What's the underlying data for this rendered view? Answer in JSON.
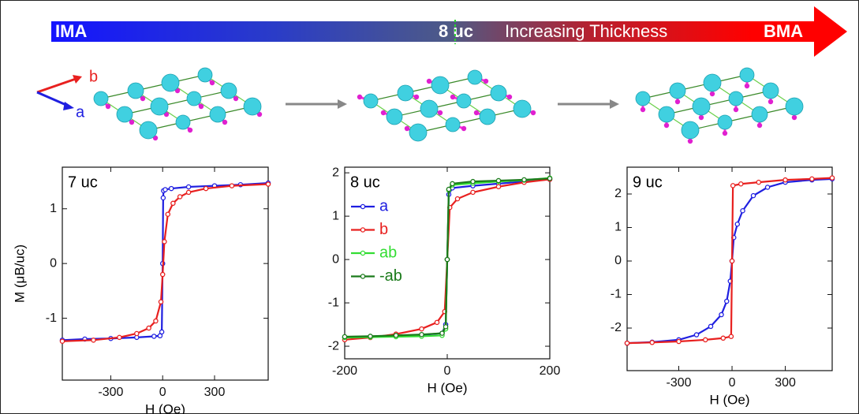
{
  "diagram": {
    "left_end": "IMA",
    "marker": "8 uc",
    "middle": "Increasing Thickness",
    "right_end": "BMA",
    "axis_b": "b",
    "axis_a": "a"
  },
  "chart_data": [
    {
      "type": "line",
      "annotation": "7 uc",
      "xlabel": "H (Oe)",
      "ylabel": "M (μB/uc)",
      "xlim": [
        -580,
        610
      ],
      "ylim": [
        -2.13,
        1.76
      ],
      "xticks": [
        -300,
        0,
        300
      ],
      "yticks": [
        -1,
        0,
        1
      ],
      "series": [
        {
          "color": "#1f1fe0",
          "x": [
            -580,
            -450,
            -300,
            -150,
            -50,
            -15,
            -5,
            0,
            3,
            5,
            15,
            50,
            150,
            300,
            450,
            610
          ],
          "values": [
            -1.4,
            -1.38,
            -1.37,
            -1.35,
            -1.33,
            -1.32,
            -1.25,
            0,
            1.2,
            1.33,
            1.35,
            1.37,
            1.4,
            1.42,
            1.44,
            1.47
          ]
        },
        {
          "color": "#e8201f",
          "x": [
            -580,
            -400,
            -250,
            -150,
            -80,
            -40,
            -10,
            0,
            10,
            30,
            60,
            100,
            150,
            250,
            400,
            610
          ],
          "values": [
            -1.42,
            -1.4,
            -1.35,
            -1.28,
            -1.18,
            -1.05,
            -0.7,
            -0.2,
            0.4,
            0.9,
            1.1,
            1.22,
            1.3,
            1.37,
            1.42,
            1.45
          ]
        }
      ]
    },
    {
      "type": "line",
      "annotation": "8 uc",
      "xlabel": "H (Oe)",
      "legend": "upper left",
      "xlim": [
        -200,
        200
      ],
      "ylim": [
        -2.29,
        2.13
      ],
      "xticks": [
        -200,
        0,
        200
      ],
      "yticks": [
        -2,
        -1,
        0,
        1,
        2
      ],
      "series": [
        {
          "name": "a",
          "color": "#1f1fe0",
          "x": [
            -200,
            -150,
            -100,
            -50,
            -10,
            -3,
            0,
            3,
            10,
            50,
            100,
            150,
            200
          ],
          "values": [
            -1.8,
            -1.78,
            -1.76,
            -1.74,
            -1.7,
            -1.5,
            0,
            1.5,
            1.65,
            1.7,
            1.75,
            1.8,
            1.85
          ]
        },
        {
          "name": "b",
          "color": "#e8201f",
          "x": [
            -200,
            -150,
            -100,
            -50,
            -20,
            -5,
            0,
            5,
            20,
            50,
            100,
            150,
            200
          ],
          "values": [
            -1.85,
            -1.8,
            -1.72,
            -1.6,
            -1.45,
            -1.2,
            0,
            1.2,
            1.4,
            1.55,
            1.68,
            1.78,
            1.85
          ]
        },
        {
          "name": "ab",
          "color": "#33dd33",
          "x": [
            -200,
            -150,
            -100,
            -50,
            -10,
            -3,
            0,
            3,
            10,
            50,
            100,
            150,
            200
          ],
          "values": [
            -1.8,
            -1.79,
            -1.78,
            -1.77,
            -1.75,
            -1.6,
            0,
            1.6,
            1.72,
            1.76,
            1.8,
            1.83,
            1.88
          ]
        },
        {
          "name": "-ab",
          "color": "#1a7a1a",
          "x": [
            -200,
            -150,
            -100,
            -50,
            -10,
            -3,
            0,
            3,
            10,
            50,
            100,
            150,
            200
          ],
          "values": [
            -1.78,
            -1.77,
            -1.75,
            -1.73,
            -1.7,
            -1.55,
            0,
            1.62,
            1.75,
            1.8,
            1.82,
            1.84,
            1.87
          ]
        }
      ]
    },
    {
      "type": "line",
      "annotation": "9 uc",
      "xlabel": "H (Oe)",
      "xlim": [
        -591,
        564
      ],
      "ylim": [
        -3.27,
        2.8
      ],
      "xticks": [
        -300,
        0,
        300
      ],
      "yticks": [
        -2,
        -1,
        0,
        1,
        2
      ],
      "series": [
        {
          "color": "#1f1fe0",
          "x": [
            -591,
            -450,
            -300,
            -200,
            -120,
            -60,
            -30,
            -10,
            0,
            10,
            30,
            60,
            120,
            200,
            300,
            450,
            564
          ],
          "values": [
            -2.45,
            -2.42,
            -2.35,
            -2.2,
            -1.95,
            -1.6,
            -1.2,
            -0.6,
            0,
            0.7,
            1.1,
            1.5,
            1.95,
            2.2,
            2.35,
            2.42,
            2.45
          ]
        },
        {
          "color": "#e8201f",
          "x": [
            -591,
            -450,
            -300,
            -150,
            -50,
            -5,
            0,
            5,
            50,
            150,
            300,
            450,
            564
          ],
          "values": [
            -2.45,
            -2.43,
            -2.4,
            -2.35,
            -2.3,
            -2.25,
            0,
            2.25,
            2.3,
            2.35,
            2.42,
            2.45,
            2.48
          ]
        }
      ]
    }
  ]
}
